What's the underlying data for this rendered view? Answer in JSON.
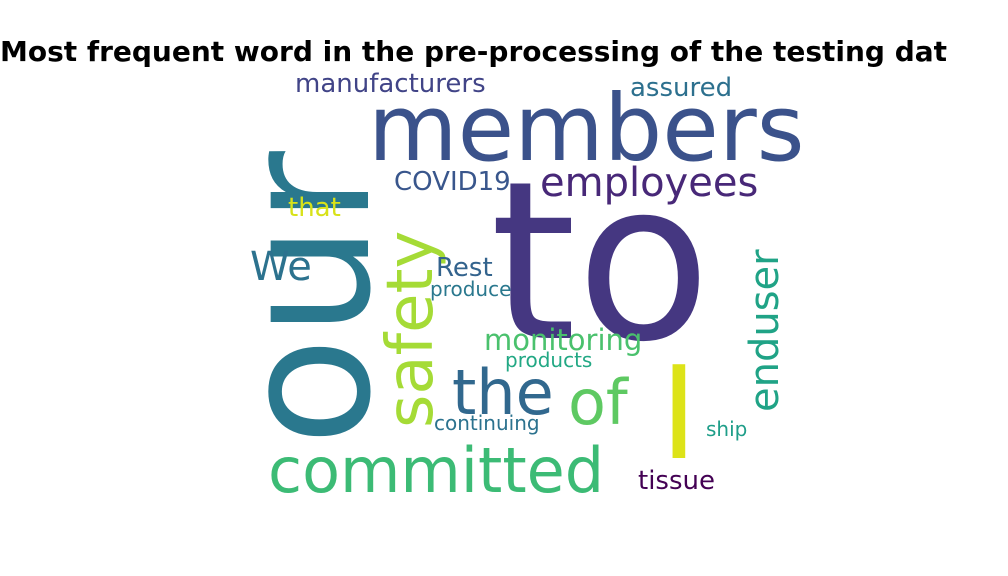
{
  "title": "Most frequent word in the pre-processing of the testing dat",
  "words": [
    {
      "text": "to",
      "color": "#453781"
    },
    {
      "text": "our",
      "color": "#2a788e"
    },
    {
      "text": "members",
      "color": "#3b528b"
    },
    {
      "text": "committed",
      "color": "#3cbb75"
    },
    {
      "text": "I",
      "color": "#dde318"
    },
    {
      "text": "safety",
      "color": "#a5db36"
    },
    {
      "text": "the",
      "color": "#31688e"
    },
    {
      "text": "of",
      "color": "#5ec962"
    },
    {
      "text": "enduser",
      "color": "#20a386"
    },
    {
      "text": "employees",
      "color": "#482878"
    },
    {
      "text": "We",
      "color": "#2c728e"
    },
    {
      "text": "monitoring",
      "color": "#4ac16d"
    },
    {
      "text": "COVID19",
      "color": "#39568c"
    },
    {
      "text": "Rest",
      "color": "#33638d"
    },
    {
      "text": "manufacturers",
      "color": "#414487"
    },
    {
      "text": "assured",
      "color": "#2d708e"
    },
    {
      "text": "that",
      "color": "#d8e219"
    },
    {
      "text": "tissue",
      "color": "#440154"
    },
    {
      "text": "produce",
      "color": "#2a788e"
    },
    {
      "text": "products",
      "color": "#22a884"
    },
    {
      "text": "continuing",
      "color": "#2c728e"
    },
    {
      "text": "ship",
      "color": "#1f9e89"
    }
  ]
}
